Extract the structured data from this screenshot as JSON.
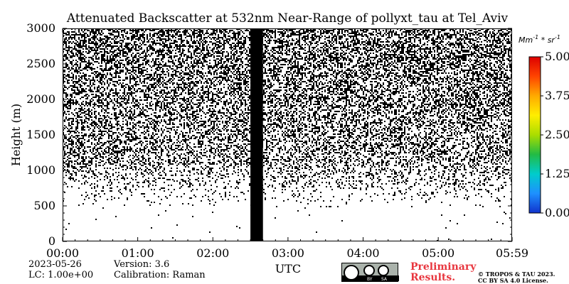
{
  "chart_data": {
    "type": "heatmap",
    "title": "Attenuated Backscatter at 532nm Near-Range of pollyxt_tau at Tel_Aviv",
    "xlabel": "UTC",
    "ylabel": "Height (m)",
    "x_ticks": [
      "00:00",
      "01:00",
      "02:00",
      "03:00",
      "04:00",
      "05:00",
      "05:59"
    ],
    "x_tick_hours": [
      0,
      1,
      2,
      3,
      4,
      5,
      5.983
    ],
    "x_range_hours": [
      0,
      5.983
    ],
    "y_ticks": [
      0,
      500,
      1000,
      1500,
      2000,
      2500,
      3000
    ],
    "ylim": [
      0,
      3000
    ],
    "colorbar": {
      "unit": "Mm^-1*sr^-1",
      "ticks": [
        "0.00",
        "1.25",
        "2.50",
        "3.75",
        "5.00"
      ],
      "range": [
        0,
        5
      ],
      "colormap": [
        "#1133cc",
        "#1e90ff",
        "#00cccc",
        "#22bb44",
        "#aadd00",
        "#ffee00",
        "#ffaa00",
        "#ff4400",
        "#dd0000"
      ]
    },
    "data_gap_hours": [
      2.5,
      2.667
    ],
    "noise_onset_height_m": 600,
    "dense_above_height_m": 1100
  },
  "meta": {
    "date": "2023-05-26",
    "lc": "LC: 1.00e+00",
    "version": "Version: 3.6",
    "calibration": "Calibration: Raman"
  },
  "license": {
    "cc_icon": "cc-by-sa-icon",
    "cc_labels": [
      "BY",
      "SA"
    ],
    "preliminary_line1": "Preliminary",
    "preliminary_line2": "Results.",
    "copyright_line1": "© TROPOS & TAU 2023.",
    "copyright_line2": "CC BY SA 4.0 License.",
    "preliminary_color": "#e8373f"
  }
}
